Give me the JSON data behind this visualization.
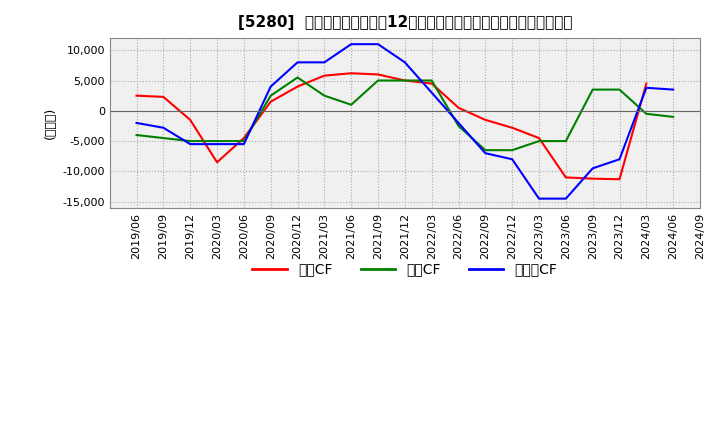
{
  "title": "[5280]  キャッシュフローの12か月移動合計の対前年同期増減額の推移",
  "ylabel": "(百万円)",
  "ylim": [
    -16000,
    12000
  ],
  "yticks": [
    -15000,
    -10000,
    -5000,
    0,
    5000,
    10000
  ],
  "x_labels": [
    "2019/06",
    "2019/09",
    "2019/12",
    "2020/03",
    "2020/06",
    "2020/09",
    "2020/12",
    "2021/03",
    "2021/06",
    "2021/09",
    "2021/12",
    "2022/03",
    "2022/06",
    "2022/09",
    "2022/12",
    "2023/03",
    "2023/06",
    "2023/09",
    "2023/12",
    "2024/03",
    "2024/06",
    "2024/09"
  ],
  "operating_cf": [
    2500,
    2300,
    -1500,
    -8500,
    -4500,
    1500,
    4000,
    5800,
    6200,
    6000,
    5000,
    4500,
    500,
    -1500,
    -2800,
    -4500,
    -11000,
    -11200,
    -11300,
    4500,
    null,
    null
  ],
  "investing_cf": [
    -4000,
    -4500,
    -5000,
    -5000,
    -5000,
    2500,
    5500,
    2500,
    1000,
    5000,
    5000,
    5000,
    -2500,
    -6500,
    -6500,
    -5000,
    -5000,
    3500,
    3500,
    -500,
    -1000,
    null
  ],
  "free_cf": [
    -2000,
    -2800,
    -5500,
    -5500,
    -5500,
    4000,
    8000,
    8000,
    11000,
    11000,
    8000,
    3000,
    -2000,
    -7000,
    -8000,
    -14500,
    -14500,
    -9500,
    -8000,
    3800,
    3500,
    null
  ],
  "line_colors": {
    "operating": "#ff0000",
    "investing": "#008000",
    "free": "#0000ff"
  },
  "legend_labels": [
    "営業CF",
    "投資CF",
    "フリーCF"
  ],
  "background_color": "#ffffff",
  "plot_bg_color": "#f0f0f0",
  "grid_color": "#aaaaaa",
  "title_fontsize": 11,
  "tick_fontsize": 8,
  "ylabel_fontsize": 9
}
